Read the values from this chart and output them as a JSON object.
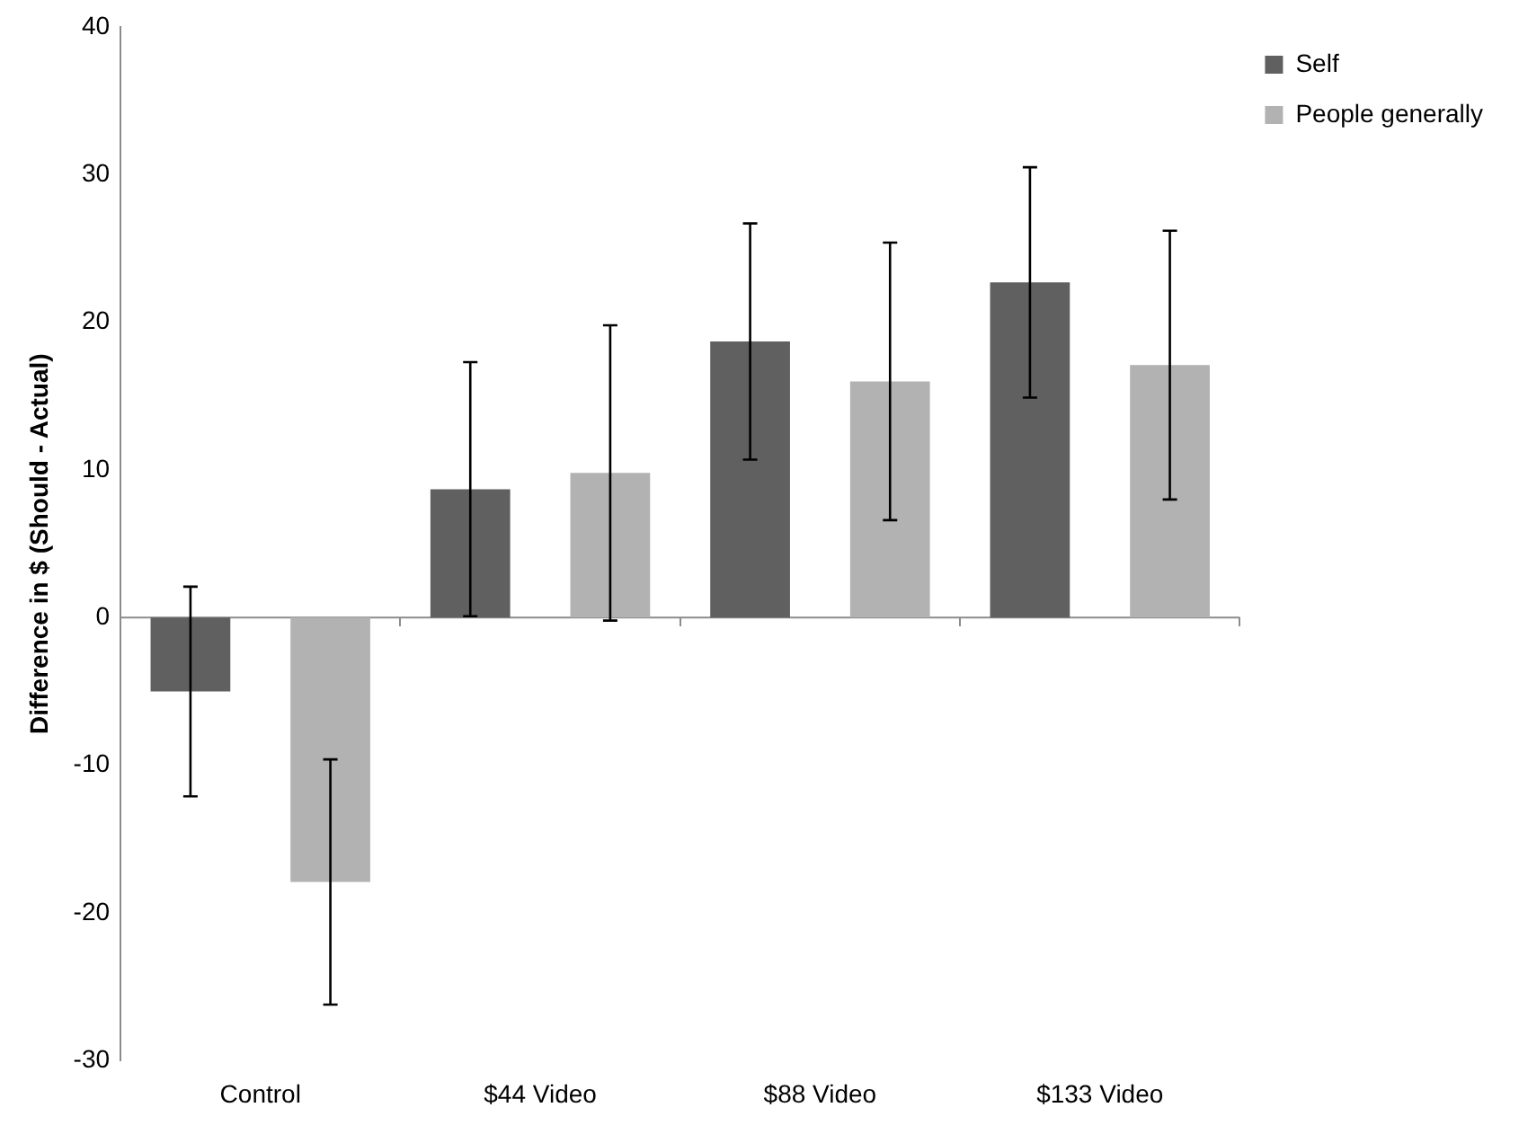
{
  "chart_data": {
    "type": "bar",
    "ylabel": "Difference in $ (Should - Actual)",
    "categories": [
      "Control",
      "$44 Video",
      "$88 Video",
      "$133 Video"
    ],
    "series": [
      {
        "name": "Self",
        "color": "#606060",
        "values": [
          -5.0,
          8.7,
          18.7,
          22.7
        ],
        "errors": [
          7.1,
          8.6,
          8.0,
          7.8
        ]
      },
      {
        "name": "People generally",
        "color": "#b2b2b2",
        "values": [
          -17.9,
          9.8,
          16.0,
          17.1
        ],
        "errors": [
          8.3,
          10.0,
          9.4,
          9.1
        ]
      }
    ],
    "ylim": [
      -30,
      40
    ],
    "yticks": [
      -30,
      -20,
      -10,
      0,
      10,
      20,
      30,
      40
    ],
    "ref_lines": [
      {
        "axis": "y",
        "value": 0,
        "color": "#8c8c8c"
      }
    ],
    "grid": false,
    "legend": "top right"
  }
}
